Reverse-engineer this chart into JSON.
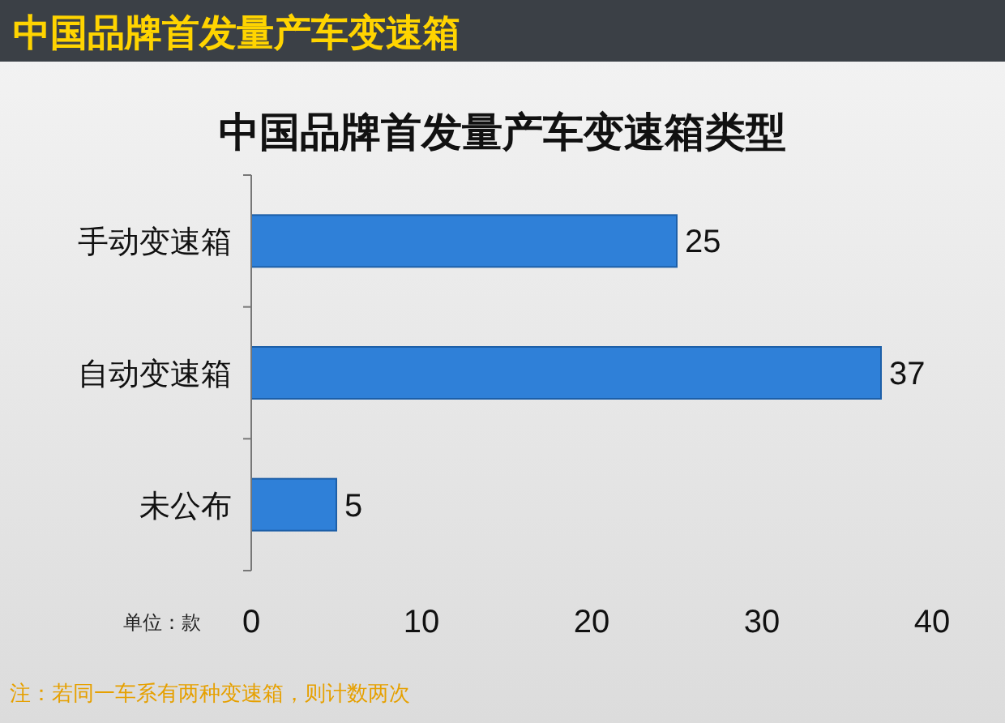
{
  "chart_data": {
    "type": "bar",
    "orientation": "horizontal",
    "title": "中国品牌首发量产车变速箱",
    "subtitle": "中国品牌首发量产车变速箱类型",
    "xlabel": "单位：款",
    "categories": [
      "手动变速箱",
      "自动变速箱",
      "未公布"
    ],
    "values": [
      25,
      37,
      5
    ],
    "color": "#2f80d8",
    "xlim": [
      0,
      40
    ],
    "xticks": [
      0,
      10,
      20,
      30,
      40
    ],
    "data_labels": true,
    "grid": false,
    "annotations": [
      "注：若同一车系有两种变速箱，则计数两次"
    ]
  }
}
